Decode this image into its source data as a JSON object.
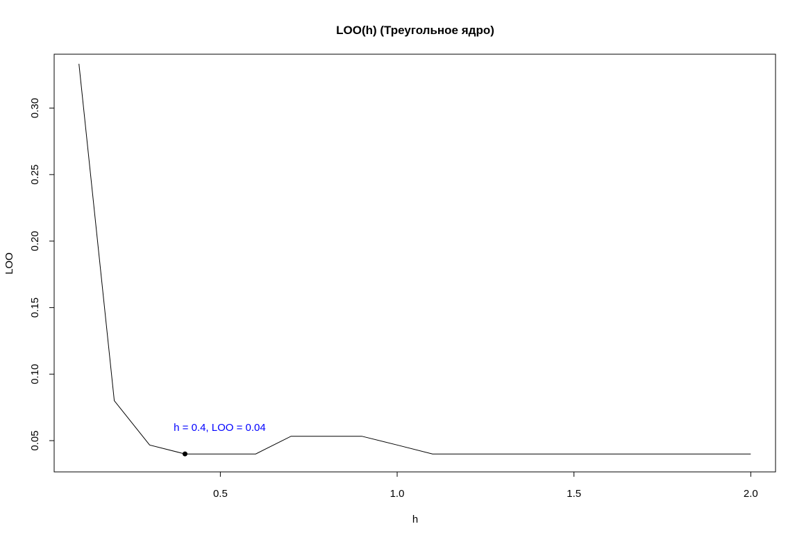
{
  "chart_data": {
    "type": "line",
    "title": "LOO(h) (Треугольное ядро)",
    "xlabel": "h",
    "ylabel": "LOO",
    "xlim": [
      0.03,
      2.07
    ],
    "ylim": [
      0.0265,
      0.3405
    ],
    "x_ticks": [
      0.5,
      1.0,
      1.5,
      2.0
    ],
    "x_tick_labels": [
      "0.5",
      "1.0",
      "1.5",
      "2.0"
    ],
    "y_ticks": [
      0.05,
      0.1,
      0.15,
      0.2,
      0.25,
      0.3
    ],
    "y_tick_labels": [
      "0.05",
      "0.10",
      "0.15",
      "0.20",
      "0.25",
      "0.30"
    ],
    "grid": false,
    "series": [
      {
        "x": [
          0.1,
          0.2,
          0.3,
          0.4,
          0.5,
          0.6,
          0.7,
          0.8,
          0.9,
          1.0,
          1.1,
          1.2,
          1.3,
          1.4,
          1.5,
          1.6,
          1.7,
          1.8,
          1.9,
          2.0
        ],
        "y": [
          0.3333,
          0.08,
          0.0467,
          0.04,
          0.04,
          0.04,
          0.0533,
          0.0533,
          0.0533,
          0.0467,
          0.04,
          0.04,
          0.04,
          0.04,
          0.04,
          0.04,
          0.04,
          0.04,
          0.04,
          0.04
        ],
        "color": "#000000"
      }
    ],
    "highlight_point": {
      "x": 0.4,
      "y": 0.04,
      "color": "#000000"
    },
    "annotation": {
      "text": "h = 0.4, LOO = 0.04",
      "x": 0.4,
      "y": 0.04,
      "color": "#0000ff"
    }
  }
}
